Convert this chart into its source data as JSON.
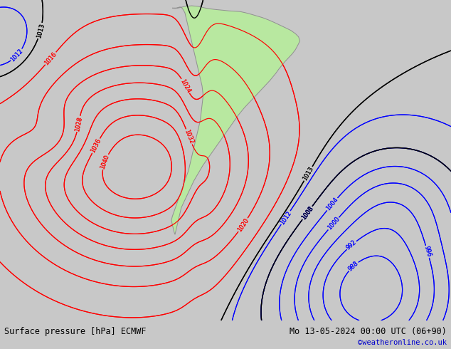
{
  "title_left": "Surface pressure [hPa] ECMWF",
  "title_right": "Mo 13-05-2024 00:00 UTC (06+90)",
  "watermark": "©weatheronline.co.uk",
  "fig_width": 6.34,
  "fig_height": 4.9,
  "dpi": 100,
  "bg_color": "#dcdcdc",
  "land_color": "#b8e8a0",
  "footer_color": "#ffffff",
  "red_levels": [
    1016,
    1020,
    1024,
    1028,
    1032,
    1036,
    1040
  ],
  "blue_levels": [
    988,
    992,
    996,
    1000,
    1004,
    1008,
    1012
  ],
  "black_levels": [
    1008,
    1013
  ]
}
